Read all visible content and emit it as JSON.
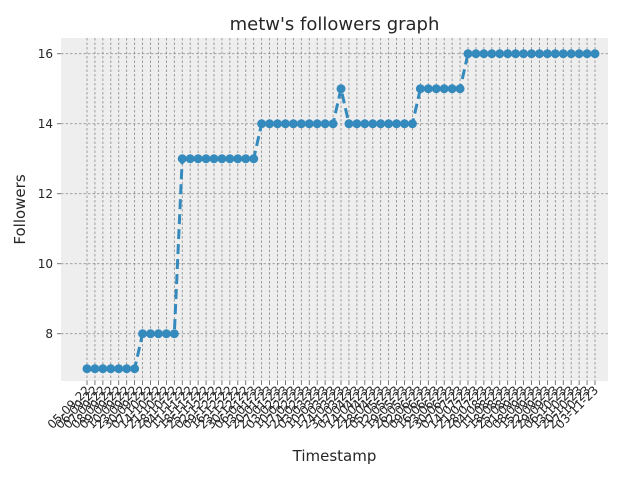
{
  "colors": {
    "plot_bg": "#eeeeee",
    "grid": "#888888",
    "series": "#348abd",
    "tick": "#555555"
  },
  "chart_data": {
    "type": "line",
    "title": "metw's followers graph",
    "xlabel": "Timestamp",
    "ylabel": "Followers",
    "ylim": [
      6.65,
      16.45
    ],
    "yticks": [
      8,
      10,
      12,
      14,
      16
    ],
    "grid": true,
    "line_style": "dashed",
    "marker": "circle",
    "x": [
      "05-09-22",
      "06-09-22",
      "07-09-22",
      "08-09-22",
      "09-09-22",
      "10-09-22",
      "23-09-22",
      "30-09-22",
      "07-10-22",
      "14-10-22",
      "21-10-22",
      "28-10-22",
      "04-11-22",
      "11-11-22",
      "18-11-22",
      "25-11-22",
      "02-12-22",
      "09-12-22",
      "16-12-22",
      "23-12-22",
      "30-12-22",
      "06-01-23",
      "13-01-23",
      "20-01-23",
      "27-01-23",
      "03-02-23",
      "10-02-23",
      "17-02-23",
      "24-02-23",
      "03-03-23",
      "10-03-23",
      "17-03-23",
      "24-03-23",
      "31-03-23",
      "07-04-23",
      "14-04-23",
      "21-04-23",
      "28-04-23",
      "05-05-23",
      "12-05-23",
      "19-05-23",
      "26-05-23",
      "02-06-23",
      "09-06-23",
      "16-06-23",
      "23-06-23",
      "30-06-23",
      "07-07-23",
      "14-07-23",
      "21-07-23",
      "28-07-23",
      "04-08-23",
      "11-08-23",
      "18-08-23",
      "25-08-23",
      "01-09-23",
      "08-09-23",
      "15-09-23",
      "22-09-23",
      "29-09-23",
      "06-10-23",
      "13-10-23",
      "20-10-23",
      "27-10-23",
      "03-11-23"
    ],
    "series": [
      {
        "values": [
          7,
          7,
          7,
          7,
          7,
          7,
          7,
          8,
          8,
          8,
          8,
          8,
          13,
          13,
          13,
          13,
          13,
          13,
          13,
          13,
          13,
          13,
          14,
          14,
          14,
          14,
          14,
          14,
          14,
          14,
          14,
          14,
          15,
          14,
          14,
          14,
          14,
          14,
          14,
          14,
          14,
          14,
          15,
          15,
          15,
          15,
          15,
          15,
          16,
          16,
          16,
          16,
          16,
          16,
          16,
          16,
          16,
          16,
          16,
          16,
          16,
          16,
          16,
          16,
          16
        ]
      }
    ]
  }
}
